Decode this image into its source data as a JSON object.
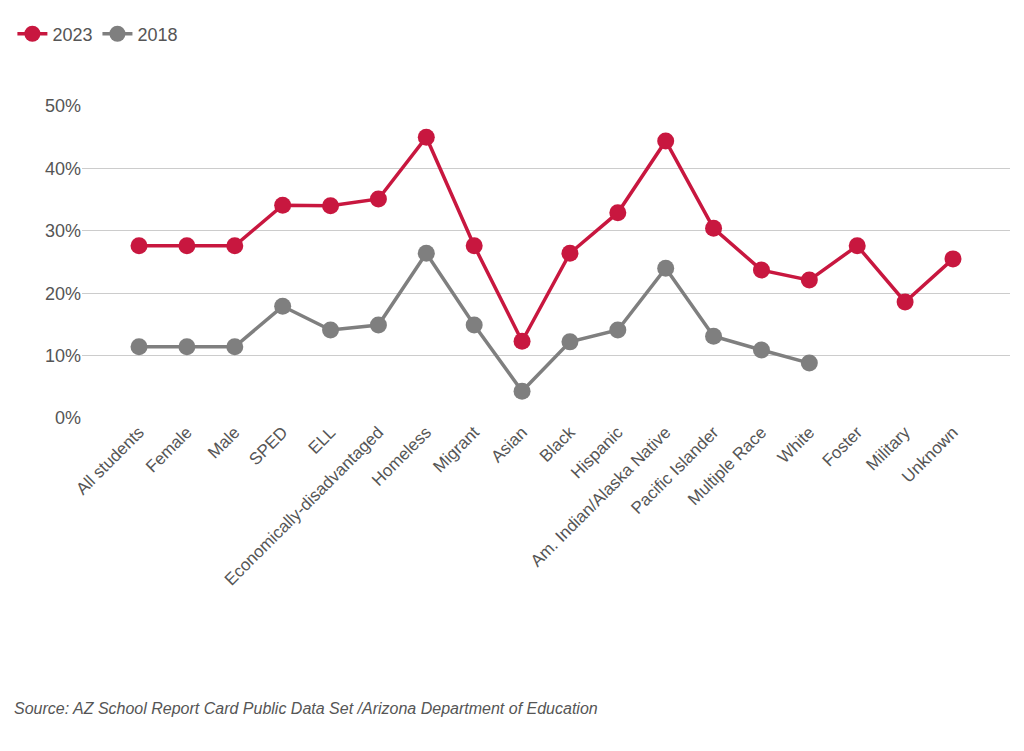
{
  "chart_data": {
    "type": "line",
    "categories": [
      "All students",
      "Female",
      "Male",
      "SPED",
      "ELL",
      "Economically-disadvantaged",
      "Homeless",
      "Migrant",
      "Asian",
      "Black",
      "Hispanic",
      "Am. Indian/Alaska Native",
      "Pacific Islander",
      "Multiple Race",
      "White",
      "Foster",
      "Military",
      "Unknown"
    ],
    "series": [
      {
        "name": "2023",
        "color": "#c8173f",
        "marker": "circle",
        "values": [
          27.6,
          27.6,
          27.6,
          34.1,
          34.0,
          35.1,
          45.0,
          27.6,
          12.3,
          26.4,
          32.9,
          44.4,
          30.4,
          23.7,
          22.1,
          27.6,
          18.6,
          25.5
        ]
      },
      {
        "name": "2018",
        "color": "#7f7f7f",
        "marker": "circle",
        "values": [
          11.4,
          11.4,
          11.4,
          17.9,
          14.1,
          14.9,
          26.4,
          14.9,
          4.3,
          12.2,
          14.1,
          24.0,
          13.1,
          10.9,
          8.8,
          null,
          null,
          null
        ]
      }
    ],
    "ylim": [
      0,
      50
    ],
    "yticks": [
      {
        "value": 0,
        "label": "0%"
      },
      {
        "value": 10,
        "label": "10%"
      },
      {
        "value": 20,
        "label": "20%"
      },
      {
        "value": 30,
        "label": "30%"
      },
      {
        "value": 40,
        "label": "40%"
      },
      {
        "value": 50,
        "label": "50%"
      }
    ],
    "grid": true,
    "legend": "top-left",
    "annotations": [
      "Source: AZ School Report Card Public Data Set /Arizona Department of Education"
    ]
  }
}
